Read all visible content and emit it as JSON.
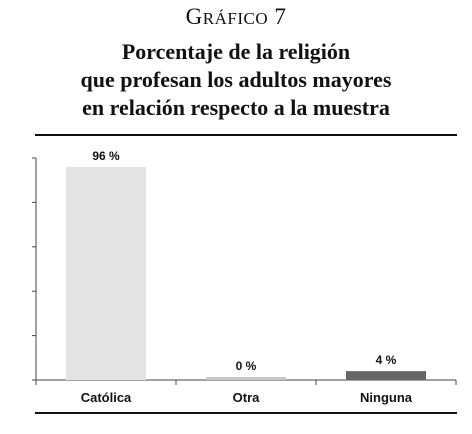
{
  "figure": {
    "label": "Gráfico 7",
    "title_lines": [
      "Porcentaje de la religión",
      "que profesan los adultos mayores",
      "en relación respecto a la muestra"
    ]
  },
  "chart_data": {
    "type": "bar",
    "categories": [
      "Católica",
      "Otra",
      "Ninguna"
    ],
    "values": [
      96,
      0,
      4
    ],
    "data_labels": [
      "96 %",
      "0 %",
      "4 %"
    ],
    "ylim": [
      0,
      100
    ],
    "grid": false,
    "colors": [
      "#e3e3e3",
      "#c6c6c6",
      "#666666"
    ]
  }
}
